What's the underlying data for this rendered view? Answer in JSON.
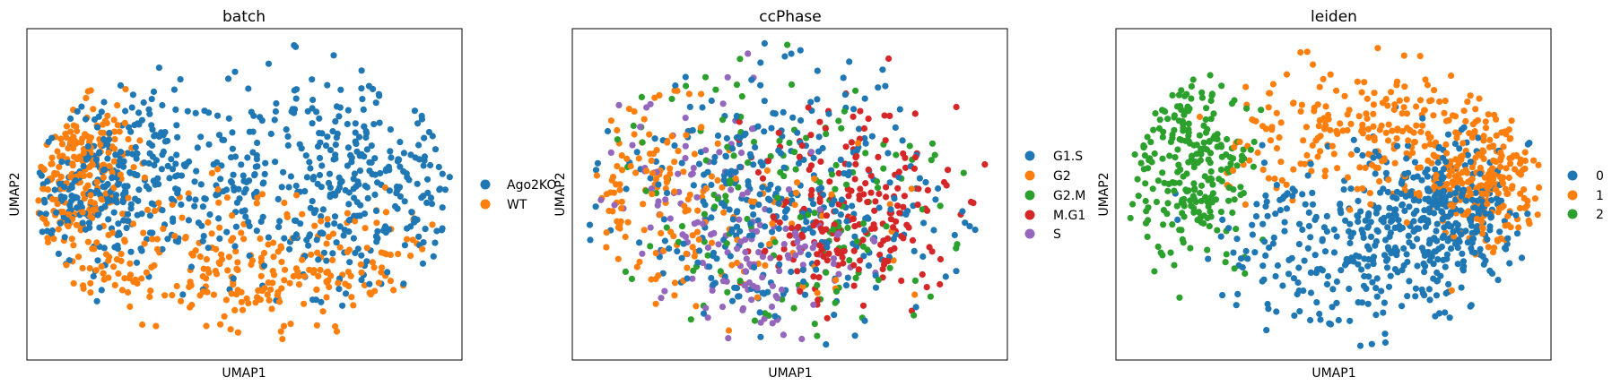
{
  "chart_data": [
    {
      "type": "scatter",
      "title": "batch",
      "xlabel": "UMAP1",
      "ylabel": "UMAP2",
      "grid": false,
      "ticks": false,
      "legend_placement": "right",
      "categories": [
        "Ago2KO",
        "WT"
      ],
      "colors": [
        "#1f77b4",
        "#ff7f0e"
      ],
      "series": [
        {
          "name": "Ago2KO",
          "approx_points": 700,
          "regions": [
            [
              0.42,
              0.58,
              0.24,
              0.16
            ],
            [
              0.18,
              0.52,
              0.1,
              0.12
            ],
            [
              0.78,
              0.52,
              0.12,
              0.16
            ]
          ]
        },
        {
          "name": "WT",
          "approx_points": 500,
          "regions": [
            [
              0.52,
              0.25,
              0.2,
              0.12
            ],
            [
              0.12,
              0.55,
              0.07,
              0.14
            ]
          ]
        }
      ]
    },
    {
      "type": "scatter",
      "title": "ccPhase",
      "xlabel": "UMAP1",
      "ylabel": "UMAP2",
      "grid": false,
      "ticks": false,
      "legend_placement": "right",
      "categories": [
        "G1.S",
        "G2",
        "G2.M",
        "M.G1",
        "S"
      ],
      "colors": [
        "#1f77b4",
        "#ff7f0e",
        "#2ca02c",
        "#d62728",
        "#9467bd"
      ],
      "series": [
        {
          "name": "G1.S",
          "approx_points": 340,
          "regions": [
            [
              0.42,
              0.6,
              0.2,
              0.18
            ],
            [
              0.55,
              0.35,
              0.2,
              0.14
            ]
          ]
        },
        {
          "name": "G2",
          "approx_points": 170,
          "regions": [
            [
              0.35,
              0.4,
              0.18,
              0.17
            ],
            [
              0.18,
              0.55,
              0.08,
              0.15
            ]
          ]
        },
        {
          "name": "G2.M",
          "approx_points": 150,
          "regions": [
            [
              0.5,
              0.45,
              0.24,
              0.22
            ]
          ]
        },
        {
          "name": "M.G1",
          "approx_points": 210,
          "regions": [
            [
              0.7,
              0.55,
              0.13,
              0.16
            ],
            [
              0.62,
              0.4,
              0.1,
              0.1
            ]
          ]
        },
        {
          "name": "S",
          "approx_points": 160,
          "regions": [
            [
              0.3,
              0.5,
              0.1,
              0.18
            ],
            [
              0.48,
              0.28,
              0.1,
              0.1
            ]
          ]
        }
      ]
    },
    {
      "type": "scatter",
      "title": "leiden",
      "xlabel": "UMAP1",
      "ylabel": "UMAP2",
      "grid": false,
      "ticks": false,
      "legend_placement": "right",
      "categories": [
        "0",
        "1",
        "2"
      ],
      "colors": [
        "#1f77b4",
        "#ff7f0e",
        "#2ca02c"
      ],
      "series": [
        {
          "name": "0",
          "approx_points": 560,
          "regions": [
            [
              0.56,
              0.35,
              0.16,
              0.14
            ],
            [
              0.75,
              0.45,
              0.08,
              0.1
            ]
          ]
        },
        {
          "name": "1",
          "approx_points": 470,
          "regions": [
            [
              0.56,
              0.68,
              0.16,
              0.1
            ],
            [
              0.85,
              0.55,
              0.07,
              0.1
            ]
          ]
        },
        {
          "name": "2",
          "approx_points": 250,
          "regions": [
            [
              0.17,
              0.6,
              0.07,
              0.14
            ]
          ]
        }
      ]
    }
  ]
}
